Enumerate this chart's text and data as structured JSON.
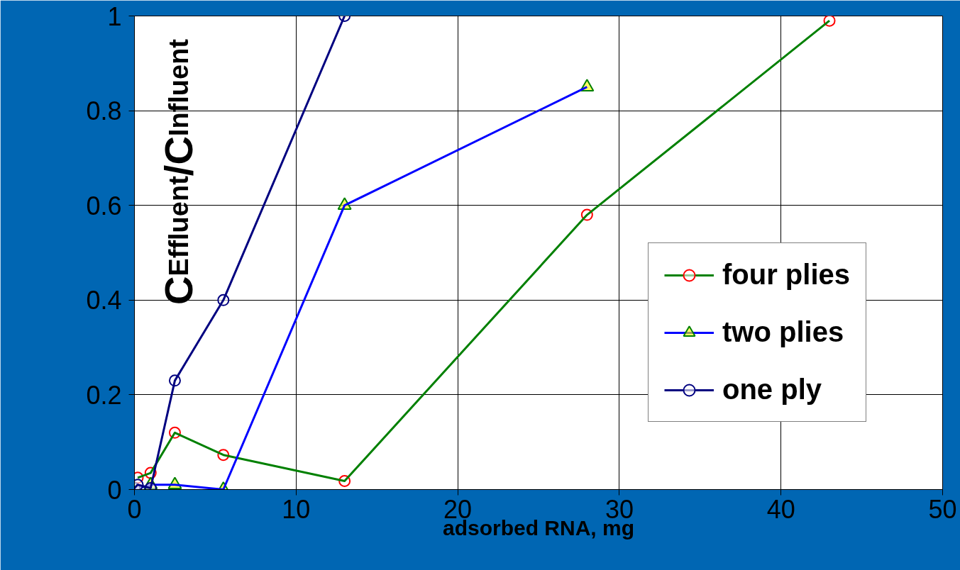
{
  "chart_data": {
    "type": "line",
    "xlabel": "adsorbed RNA, mg",
    "ylabel": "C$_{Effluent}$/C$_{Influent}$",
    "xlim": [
      0,
      50
    ],
    "ylim": [
      0,
      1
    ],
    "xticks": [
      0,
      10,
      20,
      30,
      40,
      50
    ],
    "yticks": [
      0,
      0.2,
      0.4,
      0.6,
      0.8,
      1
    ],
    "grid": true,
    "legend": "right",
    "line_style": "solid",
    "series": [
      {
        "name": "four plies",
        "color": "#008000",
        "marker": "circle",
        "x": [
          0.2,
          1,
          2.5,
          5.5,
          13,
          28,
          43
        ],
        "values": [
          0.025,
          0.035,
          0.12,
          0.073,
          0.018,
          0.58,
          0.99
        ]
      },
      {
        "name": "two plies",
        "color": "#0000ff",
        "marker": "triangle",
        "x": [
          0,
          1,
          2.5,
          5.5,
          13,
          28
        ],
        "values": [
          0,
          0.01,
          0.01,
          0,
          0.6,
          0.85
        ]
      },
      {
        "name": "one ply",
        "color": "#000080",
        "marker": "circle",
        "x": [
          0,
          0.2,
          1,
          2.5,
          5.5,
          13
        ],
        "values": [
          0.003,
          0.01,
          0.003,
          0.23,
          0.4,
          1.0
        ]
      }
    ]
  }
}
